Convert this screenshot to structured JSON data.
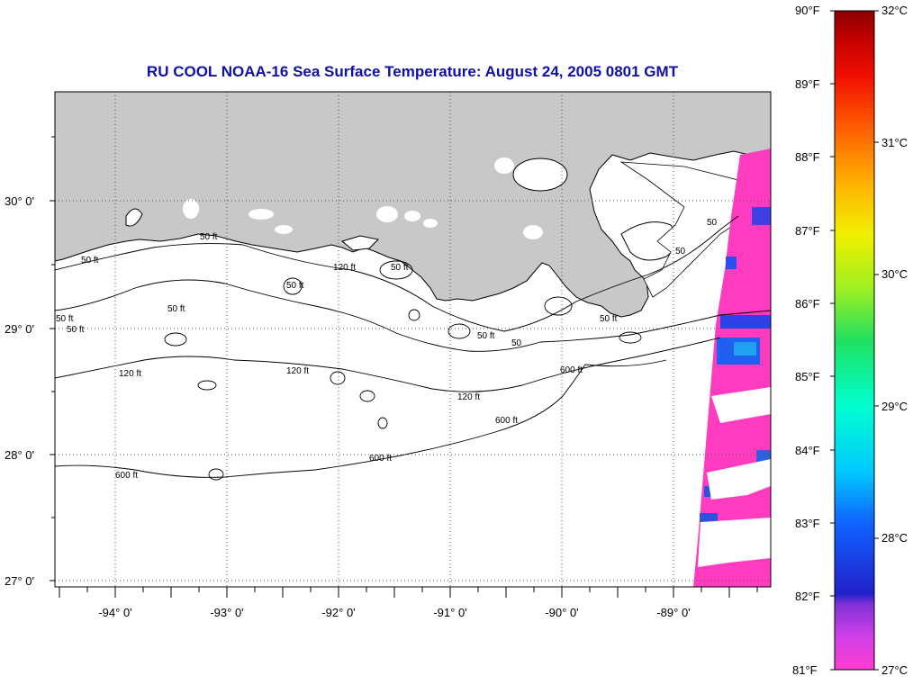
{
  "title": "RU COOL  NOAA-16  Sea Surface Temperature:  August 24, 2005 0801 GMT",
  "map": {
    "lat_labels": [
      "30° 0'",
      "29° 0'",
      "28° 0'",
      "27° 0'"
    ],
    "lon_labels": [
      "-94° 0'",
      "-93° 0'",
      "-92° 0'",
      "-91° 0'",
      "-90° 0'",
      "-89° 0'"
    ],
    "contour_labels": [
      "50 ft",
      "50 ft",
      "50 ft",
      "50 ft",
      "50 ft",
      "50 ft",
      "50 ft",
      "50 ft",
      "50 ft",
      "120 ft",
      "120 ft",
      "120 ft",
      "120 ft",
      "600 ft",
      "600 ft",
      "600 ft",
      "600 ft",
      "50",
      "50",
      "50"
    ],
    "land_color": "#c8c8c8",
    "ocean_color": "#ffffff"
  },
  "colorbar": {
    "fahrenheit_labels": [
      "90°F",
      "89°F",
      "88°F",
      "87°F",
      "86°F",
      "85°F",
      "84°F",
      "83°F",
      "82°F",
      "81°F"
    ],
    "celsius_labels": [
      "32°C",
      "31°C",
      "30°C",
      "29°C",
      "28°C",
      "27°C"
    ],
    "range_f": [
      81,
      90
    ],
    "range_c": [
      27,
      32
    ]
  }
}
